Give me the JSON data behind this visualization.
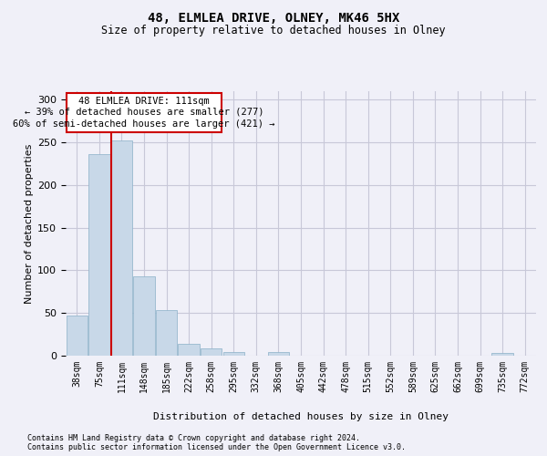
{
  "title1": "48, ELMLEA DRIVE, OLNEY, MK46 5HX",
  "title2": "Size of property relative to detached houses in Olney",
  "xlabel": "Distribution of detached houses by size in Olney",
  "ylabel": "Number of detached properties",
  "annotation_line1": "48 ELMLEA DRIVE: 111sqm",
  "annotation_line2": "← 39% of detached houses are smaller (277)",
  "annotation_line3": "60% of semi-detached houses are larger (421) →",
  "footer1": "Contains HM Land Registry data © Crown copyright and database right 2024.",
  "footer2": "Contains public sector information licensed under the Open Government Licence v3.0.",
  "bin_labels": [
    "38sqm",
    "75sqm",
    "111sqm",
    "148sqm",
    "185sqm",
    "222sqm",
    "258sqm",
    "295sqm",
    "332sqm",
    "368sqm",
    "405sqm",
    "442sqm",
    "478sqm",
    "515sqm",
    "552sqm",
    "589sqm",
    "625sqm",
    "662sqm",
    "699sqm",
    "735sqm",
    "772sqm"
  ],
  "bar_values": [
    47,
    236,
    252,
    93,
    53,
    14,
    9,
    4,
    0,
    4,
    0,
    0,
    0,
    0,
    0,
    0,
    0,
    0,
    0,
    3,
    0
  ],
  "bar_color": "#c8d8e8",
  "bar_edge_color": "#8ab0c8",
  "red_line_color": "#cc0000",
  "annotation_box_color": "#cc0000",
  "background_color": "#f0f0f8",
  "grid_color": "#c8c8d8",
  "ylim": [
    0,
    310
  ],
  "yticks": [
    0,
    50,
    100,
    150,
    200,
    250,
    300
  ]
}
